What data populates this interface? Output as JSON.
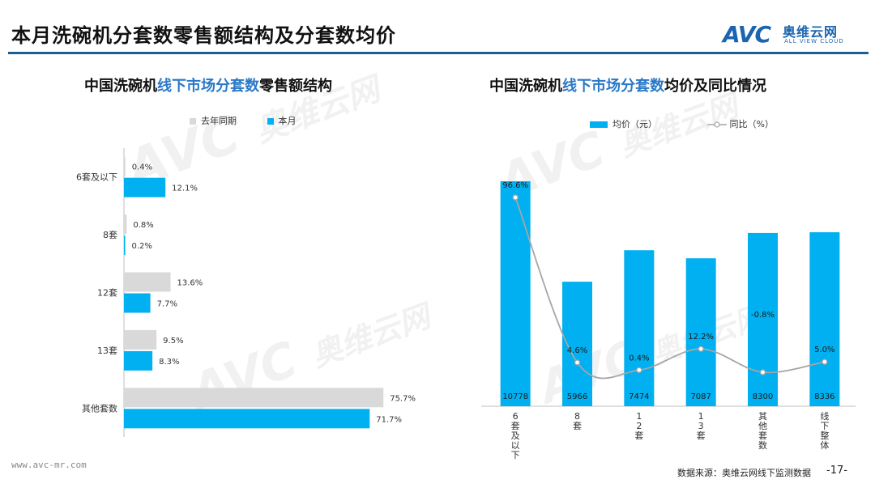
{
  "header": {
    "title": "本月洗碗机分套数零售额结构及分套数均价",
    "logo_mark": "AVC",
    "logo_cn": "奥维云网",
    "logo_en": "ALL VIEW CLOUD"
  },
  "watermark": {
    "mark": "AVC",
    "cn": "奥维云网",
    "en": "ALL VIEW CLOUD"
  },
  "left_panel": {
    "title_pre": "中国洗碗机",
    "title_hl": "线下市场分套数",
    "title_post": "零售额结构",
    "legend": [
      {
        "label": "去年同期",
        "color": "#d9d9d9"
      },
      {
        "label": "本月",
        "color": "#00b0f0"
      }
    ]
  },
  "right_panel": {
    "title_pre": "中国洗碗机",
    "title_hl": "线下市场分套数",
    "title_post": "均价及同比情况",
    "legend": [
      {
        "label": "均价（元）",
        "color": "#00b0f0",
        "kind": "bar"
      },
      {
        "label": "同比（%）",
        "color": "#a6a6a6",
        "kind": "line"
      }
    ]
  },
  "footer": {
    "url": "www.avc-mr.com",
    "source": "数据来源：奥维云网线下监测数据",
    "page": "-17-"
  },
  "colors": {
    "accent": "#00b0f0",
    "last_year": "#d9d9d9",
    "line": "#a6a6a6",
    "rule": "#1b5e96"
  },
  "chart_data": [
    {
      "type": "bar",
      "orientation": "horizontal",
      "categories": [
        "6套及以下",
        "8套",
        "12套",
        "13套",
        "其他套数"
      ],
      "series": [
        {
          "name": "去年同期",
          "values": [
            0.4,
            0.8,
            13.6,
            9.5,
            75.7
          ],
          "labels": [
            "0.4%",
            "0.8%",
            "13.6%",
            "9.5%",
            "75.7%"
          ]
        },
        {
          "name": "本月",
          "values": [
            12.1,
            0.2,
            7.7,
            8.3,
            71.7
          ],
          "labels": [
            "12.1%",
            "0.2%",
            "7.7%",
            "8.3%",
            "71.7%"
          ]
        }
      ],
      "xlim": [
        0,
        100
      ],
      "grid": false,
      "legend": "top"
    },
    {
      "type": "bar+line",
      "categories": [
        "6套及以下",
        "8套",
        "12套",
        "13套",
        "其他套数",
        "线下整体"
      ],
      "series": [
        {
          "name": "均价（元）",
          "type": "bar",
          "values": [
            10778,
            5966,
            7474,
            7087,
            8300,
            8336
          ],
          "labels": [
            "10778",
            "5966",
            "7474",
            "7087",
            "8300",
            "8336"
          ]
        },
        {
          "name": "同比（%）",
          "type": "line",
          "values": [
            96.6,
            4.6,
            0.4,
            12.2,
            -0.8,
            5.0
          ],
          "labels": [
            "96.6%",
            "4.6%",
            "0.4%",
            "12.2%",
            "-0.8%",
            "5.0%"
          ]
        }
      ],
      "ylim_bar": [
        0,
        10778
      ],
      "grid": false,
      "legend": "top"
    }
  ]
}
